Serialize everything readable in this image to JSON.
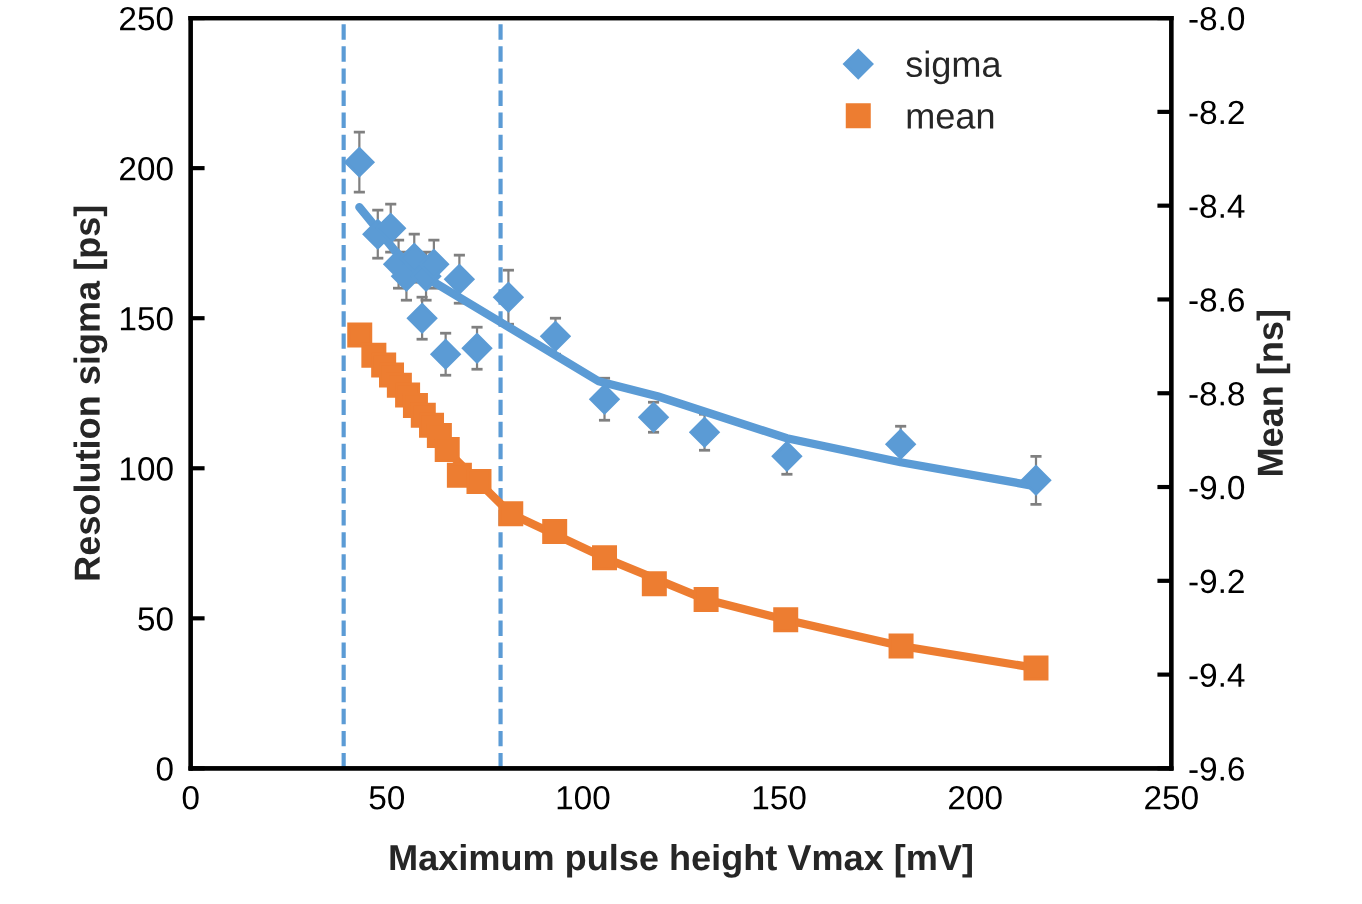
{
  "chart_data": {
    "type": "scatter",
    "xlabel": "Maximum pulse height Vmax [mV]",
    "ylabel": "Resolution sigma [ps]",
    "y2label": "Mean [ns]",
    "xlim": [
      0,
      250
    ],
    "xticks": [
      0,
      50,
      100,
      150,
      200,
      250
    ],
    "ylim": [
      0,
      250
    ],
    "yticks": [
      0,
      50,
      100,
      150,
      200,
      250
    ],
    "y2lim": [
      -9.6,
      -8.0
    ],
    "y2ticks": [
      -9.6,
      -9.4,
      -9.2,
      {
        "value": -9,
        "label": "-9.0"
      },
      -8.8,
      -8.6,
      -8.4,
      -8.2,
      {
        "value": -8,
        "label": "-8.0"
      }
    ],
    "grid": false,
    "legend": "top right",
    "ref_lines": [
      {
        "axis": "x",
        "value": 39,
        "color": "#5b9bd5",
        "line_style": "dashed"
      },
      {
        "axis": "x",
        "value": 79,
        "color": "#5b9bd5",
        "line_style": "dashed"
      }
    ],
    "series": [
      {
        "name": "sigma",
        "marker": "diamond",
        "color": "#5b9bd5",
        "x": [
          43,
          47.7,
          51,
          53,
          55,
          57,
          59,
          60,
          62,
          65,
          68.5,
          73,
          81,
          93,
          105.5,
          118,
          131,
          152,
          181,
          215.5
        ],
        "values": [
          202,
          178,
          180,
          168,
          164,
          170,
          150,
          164,
          168,
          138,
          163,
          140,
          157,
          144,
          123,
          117,
          112,
          104,
          108,
          96
        ],
        "errors": [
          10,
          8,
          8,
          8,
          8,
          8,
          7,
          8,
          8,
          7,
          8,
          7,
          9,
          6,
          7,
          5,
          6,
          6,
          6,
          8
        ]
      },
      {
        "name": "mean",
        "marker": "square",
        "color": "#ed7d31",
        "axis": "y2",
        "x": [
          43.1,
          46.7,
          49.2,
          51.2,
          53.2,
          55.3,
          57.3,
          59.3,
          61.4,
          63.4,
          65.4,
          68.5,
          73.5,
          81.6,
          92.8,
          105.5,
          118.2,
          131.4,
          151.7,
          181.1,
          215.5
        ],
        "values": [
          -8.676,
          -8.719,
          -8.74,
          -8.761,
          -8.783,
          -8.804,
          -8.826,
          -8.847,
          -8.868,
          -8.89,
          -8.92,
          -8.975,
          -8.988,
          -9.057,
          -9.095,
          -9.151,
          -9.206,
          -9.24,
          -9.283,
          -9.339,
          -9.386
        ]
      },
      {
        "type": "line",
        "marker": "none",
        "color": "#5b9bd5",
        "x": [
          43,
          53,
          62,
          78.6,
          104,
          119,
          152,
          181,
          215.5
        ],
        "values": [
          187,
          171,
          162,
          149,
          129,
          124,
          110,
          102,
          94
        ]
      },
      {
        "type": "line",
        "marker": "none",
        "color": "#ed7d31",
        "axis": "y2",
        "x": [
          43,
          55,
          65,
          81.6,
          105.5,
          131.4,
          151.7,
          181.1,
          215.5
        ],
        "values": [
          -8.676,
          -8.804,
          -8.92,
          -9.057,
          -9.151,
          -9.24,
          -9.283,
          -9.339,
          -9.386
        ]
      }
    ]
  }
}
